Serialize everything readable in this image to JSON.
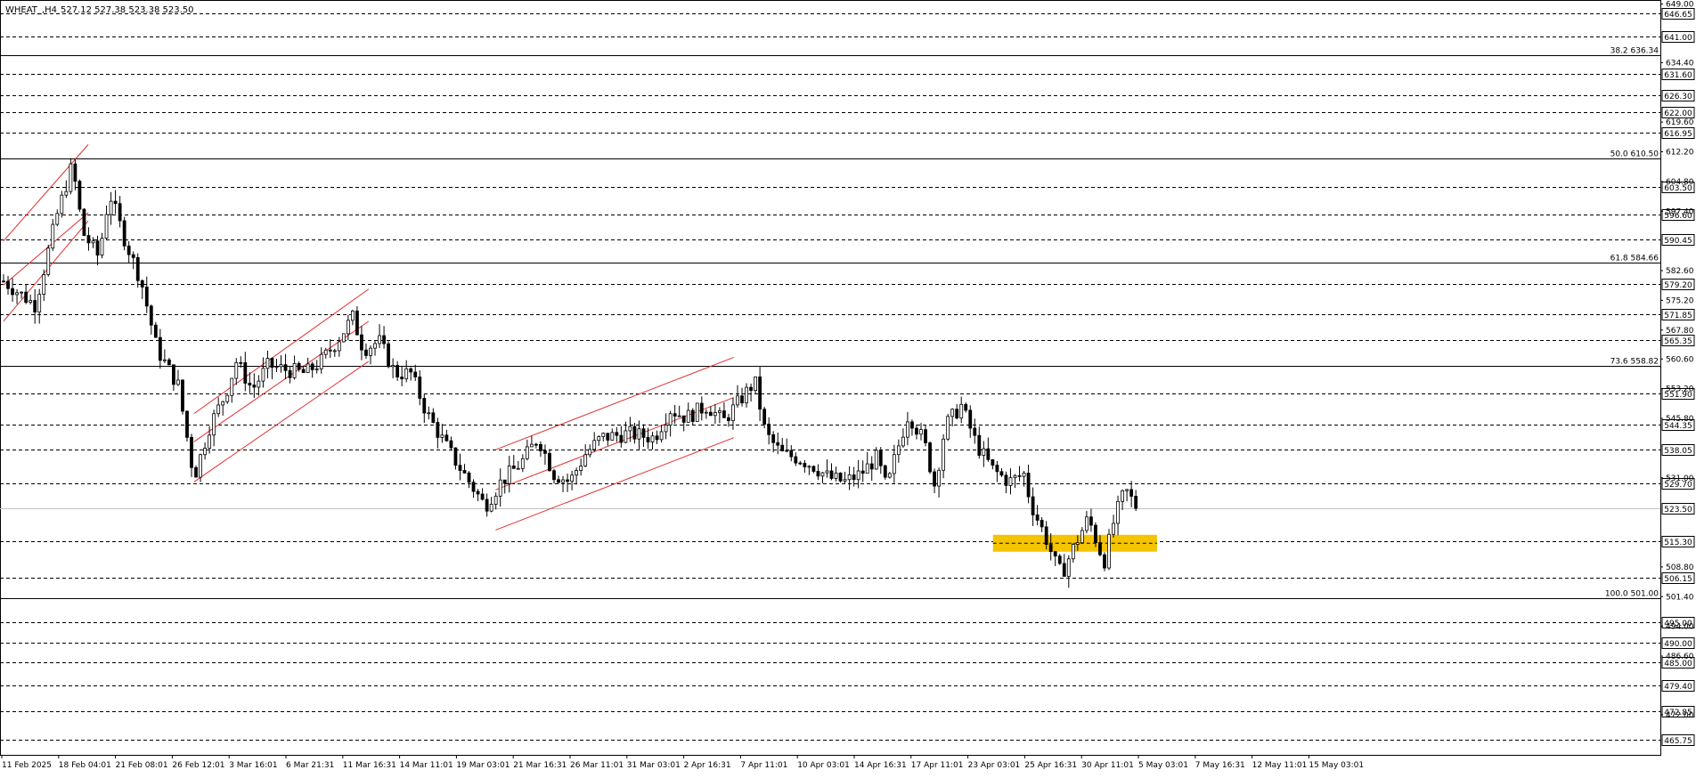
{
  "header": {
    "symbol": "WHEAT_,H4",
    "ohlc": "527.12 527.38 523.38 523.50"
  },
  "chart_data": {
    "type": "candlestick",
    "ylim": [
      462.0,
      650.0
    ],
    "grid": false,
    "current_price": 523.5,
    "price_scale_ticks": [
      649.0,
      634.4,
      619.6,
      612.2,
      604.8,
      597.4,
      582.6,
      575.2,
      567.8,
      560.6,
      553.2,
      545.8,
      531.0,
      508.8,
      501.4,
      494.0,
      486.6,
      472.0
    ],
    "horizontal_levels": [
      646.65,
      641.0,
      631.6,
      626.3,
      622.0,
      616.95,
      603.5,
      596.6,
      590.45,
      579.2,
      571.85,
      565.35,
      551.9,
      544.35,
      538.05,
      529.7,
      523.5,
      515.3,
      506.15,
      495.0,
      490.0,
      485.0,
      479.4,
      472.85,
      465.75
    ],
    "fibonacci_levels": [
      {
        "label": "38.2 636.34",
        "value": 636.34
      },
      {
        "label": "50.0 610.50",
        "value": 610.5
      },
      {
        "label": "61.8 584.66",
        "value": 584.66
      },
      {
        "label": "73.6 558.82",
        "value": 558.82
      },
      {
        "label": "100.0 501.00",
        "value": 501.0
      }
    ],
    "time_labels": [
      "11 Feb 2025",
      "18 Feb 04:01",
      "21 Feb 08:01",
      "26 Feb 12:01",
      "3 Mar 16:01",
      "6 Mar 21:31",
      "11 Mar 16:31",
      "14 Mar 11:01",
      "19 Mar 03:01",
      "21 Mar 16:31",
      "26 Mar 11:01",
      "31 Mar 03:01",
      "2 Apr 16:31",
      "7 Apr 11:01",
      "10 Apr 03:01",
      "14 Apr 16:31",
      "17 Apr 11:01",
      "23 Apr 03:01",
      "25 Apr 16:31",
      "30 Apr 11:01",
      "5 May 03:01",
      "7 May 16:31",
      "12 May 11:01",
      "15 May 03:01"
    ],
    "candle_count": 254,
    "price_path": [
      [
        0,
        580
      ],
      [
        6,
        574
      ],
      [
        10,
        596
      ],
      [
        13,
        609
      ],
      [
        15,
        592
      ],
      [
        18,
        586
      ],
      [
        20,
        602
      ],
      [
        23,
        590
      ],
      [
        26,
        580
      ],
      [
        29,
        563
      ],
      [
        33,
        554
      ],
      [
        36,
        531
      ],
      [
        39,
        544
      ],
      [
        42,
        552
      ],
      [
        44,
        560
      ],
      [
        47,
        553
      ],
      [
        50,
        559
      ],
      [
        53,
        558
      ],
      [
        57,
        557
      ],
      [
        60,
        560
      ],
      [
        63,
        565
      ],
      [
        66,
        571
      ],
      [
        68,
        563
      ],
      [
        71,
        565
      ],
      [
        74,
        557
      ],
      [
        77,
        557
      ],
      [
        80,
        547
      ],
      [
        85,
        536
      ],
      [
        91,
        524
      ],
      [
        94,
        530
      ],
      [
        98,
        535
      ],
      [
        101,
        541
      ],
      [
        104,
        532
      ],
      [
        107,
        530
      ],
      [
        110,
        537
      ],
      [
        113,
        541
      ],
      [
        118,
        542
      ],
      [
        123,
        541
      ],
      [
        126,
        548
      ],
      [
        129,
        546
      ],
      [
        133,
        549
      ],
      [
        136,
        545
      ],
      [
        139,
        550
      ],
      [
        142,
        555
      ],
      [
        144,
        542
      ],
      [
        147,
        537
      ],
      [
        150,
        536
      ],
      [
        153,
        534
      ],
      [
        156,
        531
      ],
      [
        159,
        530
      ],
      [
        162,
        532
      ],
      [
        165,
        536
      ],
      [
        167,
        528
      ],
      [
        168,
        534
      ],
      [
        171,
        547
      ],
      [
        174,
        540
      ],
      [
        176,
        529
      ],
      [
        178,
        544
      ],
      [
        181,
        549
      ],
      [
        184,
        539
      ],
      [
        187,
        533
      ],
      [
        190,
        530
      ],
      [
        193,
        532
      ],
      [
        194,
        525
      ],
      [
        197,
        516
      ],
      [
        199,
        509
      ],
      [
        200,
        507
      ],
      [
        202,
        513
      ],
      [
        205,
        521
      ],
      [
        208,
        510
      ],
      [
        210,
        521
      ],
      [
        212,
        528
      ],
      [
        214,
        524
      ]
    ],
    "channels": [
      {
        "name": "channel-1",
        "lines": [
          [
            [
              0,
              590
            ],
            [
              16,
              614
            ]
          ],
          [
            [
              0,
              570
            ],
            [
              16,
              595
            ]
          ]
        ]
      },
      {
        "name": "channel-2",
        "lines": [
          [
            [
              36,
              547
            ],
            [
              69,
              578
            ]
          ],
          [
            [
              36,
              530
            ],
            [
              69,
              560
            ]
          ]
        ]
      },
      {
        "name": "channel-3",
        "lines": [
          [
            [
              93,
              538
            ],
            [
              138,
              561
            ]
          ],
          [
            [
              93,
              518
            ],
            [
              138,
              541
            ]
          ]
        ]
      }
    ],
    "mid_lines": [
      {
        "line": [
          [
            0,
            579
          ],
          [
            16,
            597
          ]
        ]
      },
      {
        "line": [
          [
            36,
            540
          ],
          [
            69,
            570
          ]
        ]
      },
      {
        "line": [
          [
            93,
            528
          ],
          [
            138,
            551
          ]
        ]
      }
    ],
    "support_zone": {
      "x_from": 187,
      "x_to": 218,
      "price_from": 512.6,
      "price_to": 516.8
    },
    "colors": {
      "background": "#ffffff",
      "candle": "#000000",
      "channel": "#e03030",
      "fib_line": "#000000",
      "level_line": "#000000",
      "zone": "#f5c400",
      "current_price": "#c0c0c0"
    }
  }
}
